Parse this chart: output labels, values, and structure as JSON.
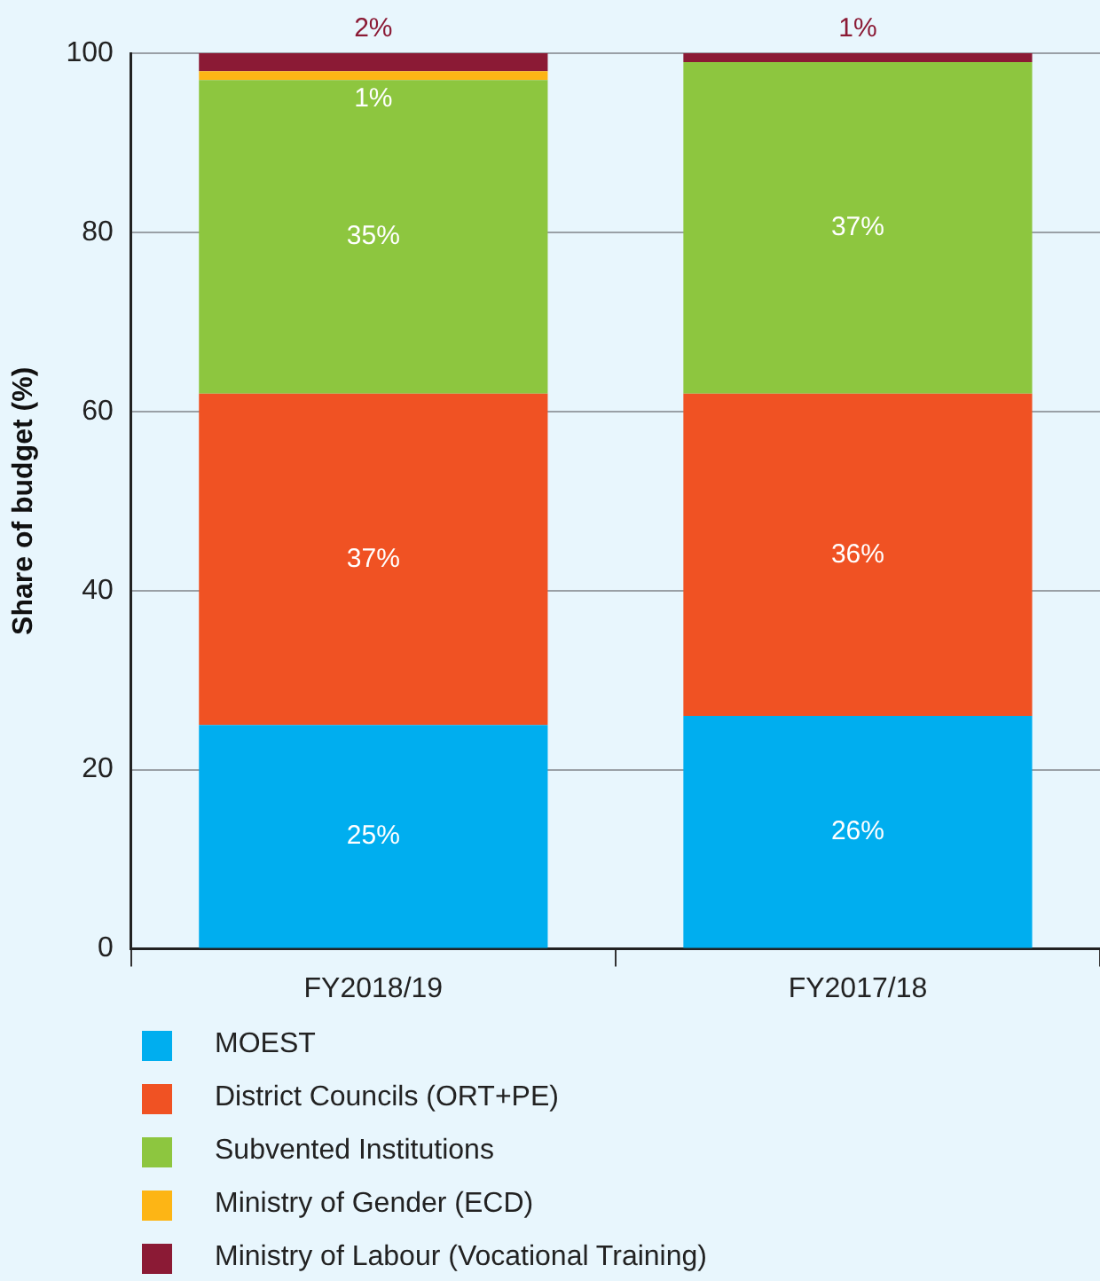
{
  "chart_data": {
    "type": "bar",
    "stacked": true,
    "ylabel": "Share of budget (%)",
    "categories": [
      "FY2018/19",
      "FY2017/18"
    ],
    "series": [
      {
        "name": "MOEST",
        "color": "#00aeef",
        "values": [
          25,
          26
        ],
        "value_labels": [
          "25%",
          "26%"
        ]
      },
      {
        "name": "District Councils (ORT+PE)",
        "color": "#f05223",
        "values": [
          37,
          36
        ],
        "value_labels": [
          "37%",
          "36%"
        ]
      },
      {
        "name": "Subvented Institutions",
        "color": "#8dc63f",
        "values": [
          35,
          37
        ],
        "value_labels": [
          "35%",
          "37%"
        ]
      },
      {
        "name": "Ministry of Gender (ECD)",
        "color": "#fdb515",
        "values": [
          1,
          null
        ],
        "value_labels": [
          "1%",
          null
        ]
      },
      {
        "name": "Ministry of Labour (Vocational Training)",
        "color": "#8b1a35",
        "values": [
          2,
          1
        ],
        "value_labels": [
          "2%",
          "1%"
        ]
      }
    ],
    "ylim": [
      0,
      100
    ],
    "yticks": [
      0,
      20,
      40,
      60,
      80,
      100
    ],
    "grid": "y",
    "legend": "bottom"
  }
}
